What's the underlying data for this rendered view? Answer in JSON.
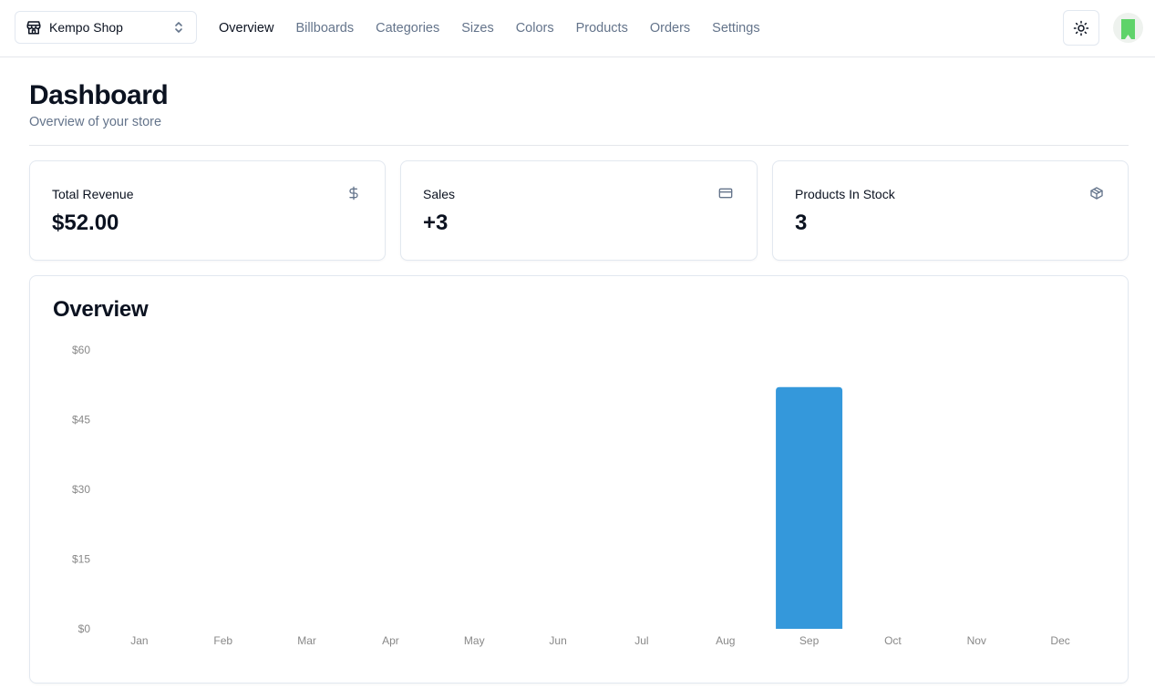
{
  "store_switcher": {
    "name": "Kempo Shop"
  },
  "nav": {
    "items": [
      {
        "label": "Overview",
        "active": true
      },
      {
        "label": "Billboards",
        "active": false
      },
      {
        "label": "Categories",
        "active": false
      },
      {
        "label": "Sizes",
        "active": false
      },
      {
        "label": "Colors",
        "active": false
      },
      {
        "label": "Products",
        "active": false
      },
      {
        "label": "Orders",
        "active": false
      },
      {
        "label": "Settings",
        "active": false
      }
    ]
  },
  "header": {
    "title": "Dashboard",
    "subtitle": "Overview of your store"
  },
  "cards": [
    {
      "label": "Total Revenue",
      "value": "$52.00",
      "icon": "dollar-icon"
    },
    {
      "label": "Sales",
      "value": "+3",
      "icon": "credit-card-icon"
    },
    {
      "label": "Products In Stock",
      "value": "3",
      "icon": "package-icon"
    }
  ],
  "overview": {
    "title": "Overview"
  },
  "colors": {
    "bar": "#3498db",
    "text_muted": "#64748b",
    "avatar_accent": "#5fd36a"
  },
  "chart_data": {
    "type": "bar",
    "categories": [
      "Jan",
      "Feb",
      "Mar",
      "Apr",
      "May",
      "Jun",
      "Jul",
      "Aug",
      "Sep",
      "Oct",
      "Nov",
      "Dec"
    ],
    "values": [
      0,
      0,
      0,
      0,
      0,
      0,
      0,
      0,
      52,
      0,
      0,
      0
    ],
    "y_ticks": [
      0,
      15,
      30,
      45,
      60
    ],
    "y_tick_labels": [
      "$0",
      "$15",
      "$30",
      "$45",
      "$60"
    ],
    "ylim": [
      0,
      60
    ],
    "grid": false,
    "legend": "none"
  }
}
